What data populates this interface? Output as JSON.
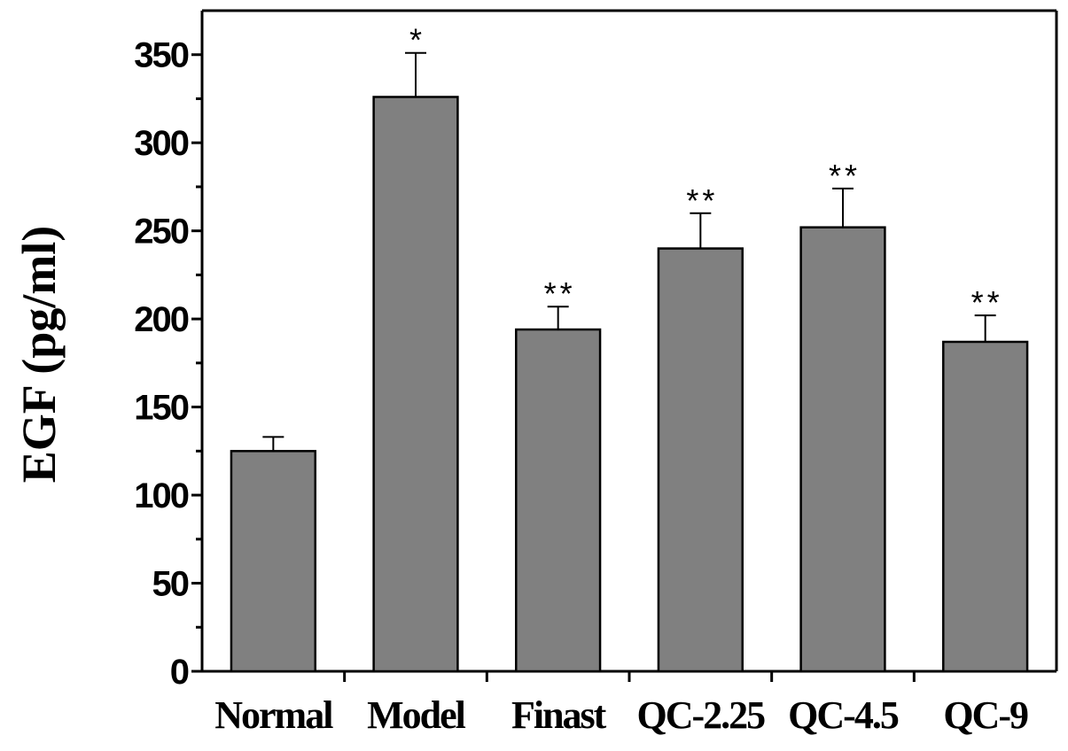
{
  "chart_data": {
    "type": "bar",
    "title": "",
    "xlabel": "",
    "ylabel": "EGF (pg/ml)",
    "ylim": [
      0,
      375
    ],
    "yticks": [
      0,
      50,
      100,
      150,
      200,
      250,
      300,
      350
    ],
    "categories": [
      "Normal",
      "Model",
      "Finast",
      "QC-2.25",
      "QC-4.5",
      "QC-9"
    ],
    "values": [
      125,
      326,
      194,
      240,
      252,
      187
    ],
    "errors": [
      8,
      25,
      13,
      20,
      22,
      15
    ],
    "annotations": [
      "",
      "*",
      "**",
      "**",
      "**",
      "**"
    ],
    "bar_color": "#808080",
    "grid": false,
    "legend": "none"
  }
}
